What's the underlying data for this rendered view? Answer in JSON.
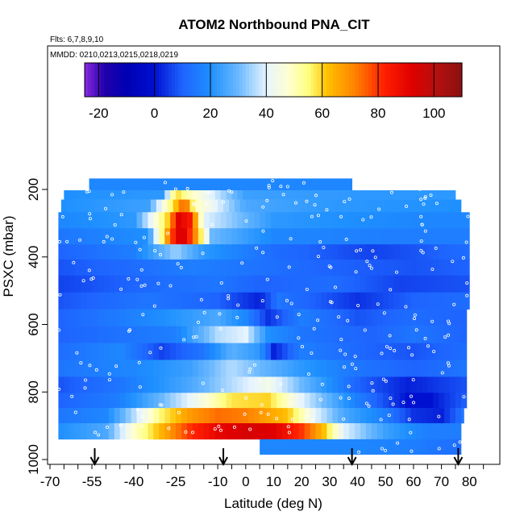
{
  "chart_data": {
    "type": "heatmap",
    "title": "ATOM2 Northbound PNA_CIT",
    "flights_note": "Flts: 6,7,8,9,10",
    "dates_note": "MMDD: 0210,0213,0215,0218,0219",
    "xlabel": "Latitude (deg N)",
    "ylabel": "PSXC (mbar)",
    "xlim": [
      -70,
      90
    ],
    "ylim": [
      1000,
      100
    ],
    "x_ticks": [
      -70,
      -55,
      -40,
      -25,
      -10,
      0,
      10,
      20,
      30,
      40,
      50,
      60,
      70,
      80
    ],
    "x_minor_ticks": [
      -65,
      -60,
      -50,
      -45,
      -35,
      -30,
      -20,
      -15,
      -5,
      5,
      15,
      25,
      35,
      45,
      55,
      65,
      75,
      85
    ],
    "y_ticks": [
      200,
      400,
      600,
      800,
      1000
    ],
    "colorbar": {
      "min": -25,
      "max": 110,
      "ticks": [
        -20,
        0,
        20,
        40,
        60,
        80,
        100
      ],
      "stops": [
        [
          -25,
          "#8a2be2"
        ],
        [
          -18,
          "#2200aa"
        ],
        [
          -10,
          "#0000b4"
        ],
        [
          0,
          "#0010d0"
        ],
        [
          10,
          "#1e64ff"
        ],
        [
          20,
          "#1e90ff"
        ],
        [
          30,
          "#6ab8ff"
        ],
        [
          40,
          "#e6f4ff"
        ],
        [
          48,
          "#ffffd0"
        ],
        [
          55,
          "#ffff80"
        ],
        [
          62,
          "#ffc000"
        ],
        [
          72,
          "#ff8000"
        ],
        [
          82,
          "#ff2000"
        ],
        [
          92,
          "#e00000"
        ],
        [
          102,
          "#b01010"
        ],
        [
          110,
          "#8b1010"
        ]
      ]
    },
    "flight_markers_lat": [
      -54,
      -8,
      38,
      76
    ],
    "pressure_levels": [
      {
        "p": 190,
        "lat": [
          -56,
          38
        ],
        "knots": [
          [
            -56,
            18
          ],
          [
            38,
            18
          ]
        ]
      },
      {
        "p": 215,
        "lat": [
          -65,
          75
        ],
        "knots": [
          [
            -65,
            20
          ],
          [
            -30,
            22
          ],
          [
            -25,
            60
          ],
          [
            -20,
            50
          ],
          [
            0,
            24
          ],
          [
            40,
            22
          ],
          [
            75,
            22
          ]
        ]
      },
      {
        "p": 245,
        "lat": [
          -66,
          77
        ],
        "knots": [
          [
            -66,
            20
          ],
          [
            -35,
            24
          ],
          [
            -25,
            62
          ],
          [
            -22,
            78
          ],
          [
            -18,
            50
          ],
          [
            0,
            26
          ],
          [
            30,
            22
          ],
          [
            77,
            20
          ]
        ]
      },
      {
        "p": 290,
        "lat": [
          -67,
          80
        ],
        "knots": [
          [
            -67,
            18
          ],
          [
            -40,
            22
          ],
          [
            -28,
            60
          ],
          [
            -24,
            92
          ],
          [
            -20,
            85
          ],
          [
            -15,
            40
          ],
          [
            10,
            22
          ],
          [
            60,
            18
          ],
          [
            80,
            18
          ]
        ]
      },
      {
        "p": 340,
        "lat": [
          -67,
          80
        ],
        "knots": [
          [
            -67,
            14
          ],
          [
            -35,
            20
          ],
          [
            -27,
            75
          ],
          [
            -23,
            98
          ],
          [
            -18,
            70
          ],
          [
            -12,
            30
          ],
          [
            10,
            18
          ],
          [
            50,
            16
          ],
          [
            80,
            16
          ]
        ]
      },
      {
        "p": 385,
        "lat": [
          -67,
          80
        ],
        "knots": [
          [
            -67,
            10
          ],
          [
            -40,
            16
          ],
          [
            -25,
            34
          ],
          [
            -15,
            22
          ],
          [
            10,
            12
          ],
          [
            45,
            6
          ],
          [
            60,
            8
          ],
          [
            80,
            12
          ]
        ]
      },
      {
        "p": 430,
        "lat": [
          -67,
          80
        ],
        "knots": [
          [
            -67,
            8
          ],
          [
            -40,
            12
          ],
          [
            -20,
            16
          ],
          [
            0,
            14
          ],
          [
            30,
            10
          ],
          [
            60,
            8
          ],
          [
            80,
            10
          ]
        ]
      },
      {
        "p": 480,
        "lat": [
          -67,
          80
        ],
        "knots": [
          [
            -67,
            6
          ],
          [
            -30,
            12
          ],
          [
            -10,
            14
          ],
          [
            5,
            10
          ],
          [
            30,
            12
          ],
          [
            55,
            6
          ],
          [
            80,
            8
          ]
        ]
      },
      {
        "p": 530,
        "lat": [
          -67,
          80
        ],
        "knots": [
          [
            -67,
            8
          ],
          [
            -35,
            14
          ],
          [
            -10,
            10
          ],
          [
            5,
            2
          ],
          [
            12,
            14
          ],
          [
            40,
            4
          ],
          [
            60,
            10
          ],
          [
            80,
            12
          ]
        ]
      },
      {
        "p": 580,
        "lat": [
          -67,
          79
        ],
        "knots": [
          [
            -67,
            10
          ],
          [
            -35,
            18
          ],
          [
            -10,
            26
          ],
          [
            0,
            18
          ],
          [
            8,
            4
          ],
          [
            20,
            16
          ],
          [
            40,
            8
          ],
          [
            60,
            12
          ],
          [
            79,
            10
          ]
        ]
      },
      {
        "p": 630,
        "lat": [
          -67,
          79
        ],
        "knots": [
          [
            -67,
            10
          ],
          [
            -40,
            14
          ],
          [
            -25,
            16
          ],
          [
            -10,
            36
          ],
          [
            0,
            40
          ],
          [
            8,
            20
          ],
          [
            20,
            14
          ],
          [
            45,
            10
          ],
          [
            60,
            14
          ],
          [
            79,
            10
          ]
        ]
      },
      {
        "p": 680,
        "lat": [
          -67,
          79
        ],
        "knots": [
          [
            -67,
            12
          ],
          [
            -45,
            18
          ],
          [
            -30,
            6
          ],
          [
            -15,
            14
          ],
          [
            -5,
            28
          ],
          [
            5,
            22
          ],
          [
            10,
            2
          ],
          [
            20,
            16
          ],
          [
            45,
            10
          ],
          [
            60,
            8
          ],
          [
            79,
            12
          ]
        ]
      },
      {
        "p": 730,
        "lat": [
          -67,
          79
        ],
        "knots": [
          [
            -67,
            14
          ],
          [
            -40,
            18
          ],
          [
            -20,
            24
          ],
          [
            -5,
            36
          ],
          [
            5,
            30
          ],
          [
            20,
            22
          ],
          [
            40,
            14
          ],
          [
            60,
            10
          ],
          [
            79,
            14
          ]
        ]
      },
      {
        "p": 780,
        "lat": [
          -67,
          79
        ],
        "knots": [
          [
            -67,
            8
          ],
          [
            -45,
            14
          ],
          [
            -20,
            26
          ],
          [
            -5,
            36
          ],
          [
            8,
            44
          ],
          [
            20,
            30
          ],
          [
            40,
            10
          ],
          [
            58,
            2
          ],
          [
            66,
            4
          ],
          [
            79,
            8
          ]
        ]
      },
      {
        "p": 825,
        "lat": [
          -67,
          79
        ],
        "knots": [
          [
            -67,
            10
          ],
          [
            -45,
            16
          ],
          [
            -30,
            30
          ],
          [
            -15,
            46
          ],
          [
            -5,
            58
          ],
          [
            8,
            60
          ],
          [
            20,
            40
          ],
          [
            40,
            16
          ],
          [
            58,
            0
          ],
          [
            66,
            0
          ],
          [
            79,
            10
          ]
        ]
      },
      {
        "p": 870,
        "lat": [
          -67,
          78
        ],
        "knots": [
          [
            -67,
            14
          ],
          [
            -50,
            18
          ],
          [
            -40,
            36
          ],
          [
            -30,
            56
          ],
          [
            -20,
            68
          ],
          [
            -10,
            74
          ],
          [
            0,
            72
          ],
          [
            15,
            62
          ],
          [
            25,
            40
          ],
          [
            35,
            26
          ],
          [
            50,
            16
          ],
          [
            60,
            4
          ],
          [
            70,
            2
          ],
          [
            78,
            14
          ]
        ]
      },
      {
        "p": 915,
        "lat": [
          -67,
          77
        ],
        "knots": [
          [
            -67,
            20
          ],
          [
            -50,
            26
          ],
          [
            -40,
            48
          ],
          [
            -30,
            64
          ],
          [
            -20,
            80
          ],
          [
            -10,
            90
          ],
          [
            0,
            94
          ],
          [
            10,
            92
          ],
          [
            20,
            80
          ],
          [
            28,
            62
          ],
          [
            35,
            40
          ],
          [
            50,
            24
          ],
          [
            65,
            16
          ],
          [
            77,
            16
          ]
        ]
      },
      {
        "p": 965,
        "lat": [
          5,
          77
        ],
        "knots": [
          [
            5,
            18
          ],
          [
            40,
            18
          ],
          [
            60,
            16
          ],
          [
            77,
            12
          ]
        ]
      }
    ]
  }
}
